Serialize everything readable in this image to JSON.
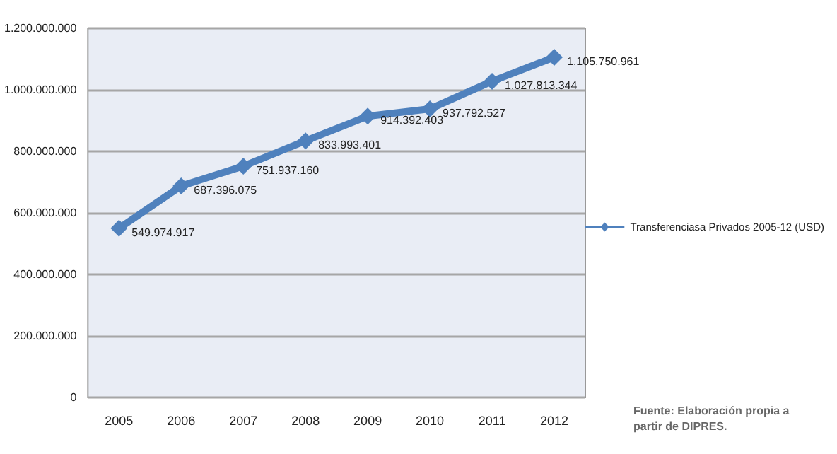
{
  "chart_data": {
    "type": "line",
    "categories": [
      "2005",
      "2006",
      "2007",
      "2008",
      "2009",
      "2010",
      "2011",
      "2012"
    ],
    "series": [
      {
        "name": "Transferenciasa Privados 2005-12 (USD)",
        "color": "#4f81bd",
        "values": [
          549974917,
          687396075,
          751937160,
          833993401,
          914392403,
          937792527,
          1027813344,
          1105750961
        ],
        "value_labels": [
          "549.974.917",
          "687.396.075",
          "751.937.160",
          "833.993.401",
          "914.392.403",
          "937.792.527",
          "1.027.813.344",
          "1.105.750.961"
        ]
      }
    ],
    "ylim": [
      0,
      1200000000
    ],
    "yticks": [
      0,
      {
        "value": 200000000,
        "label": "200.000.000"
      },
      {
        "value": 400000000,
        "label": "400.000.000"
      },
      {
        "value": 600000000,
        "label": "600.000.000"
      },
      {
        "value": 800000000,
        "label": "800.000.000"
      },
      {
        "value": 1000000000,
        "label": "1.000.000.000"
      },
      {
        "value": 1200000000,
        "label": "1.200.000.000"
      }
    ],
    "grid": "y",
    "legend": "right",
    "marker": "diamond",
    "annotations": [
      "Fuente: Elaboración propia a partir de DIPRES."
    ]
  }
}
